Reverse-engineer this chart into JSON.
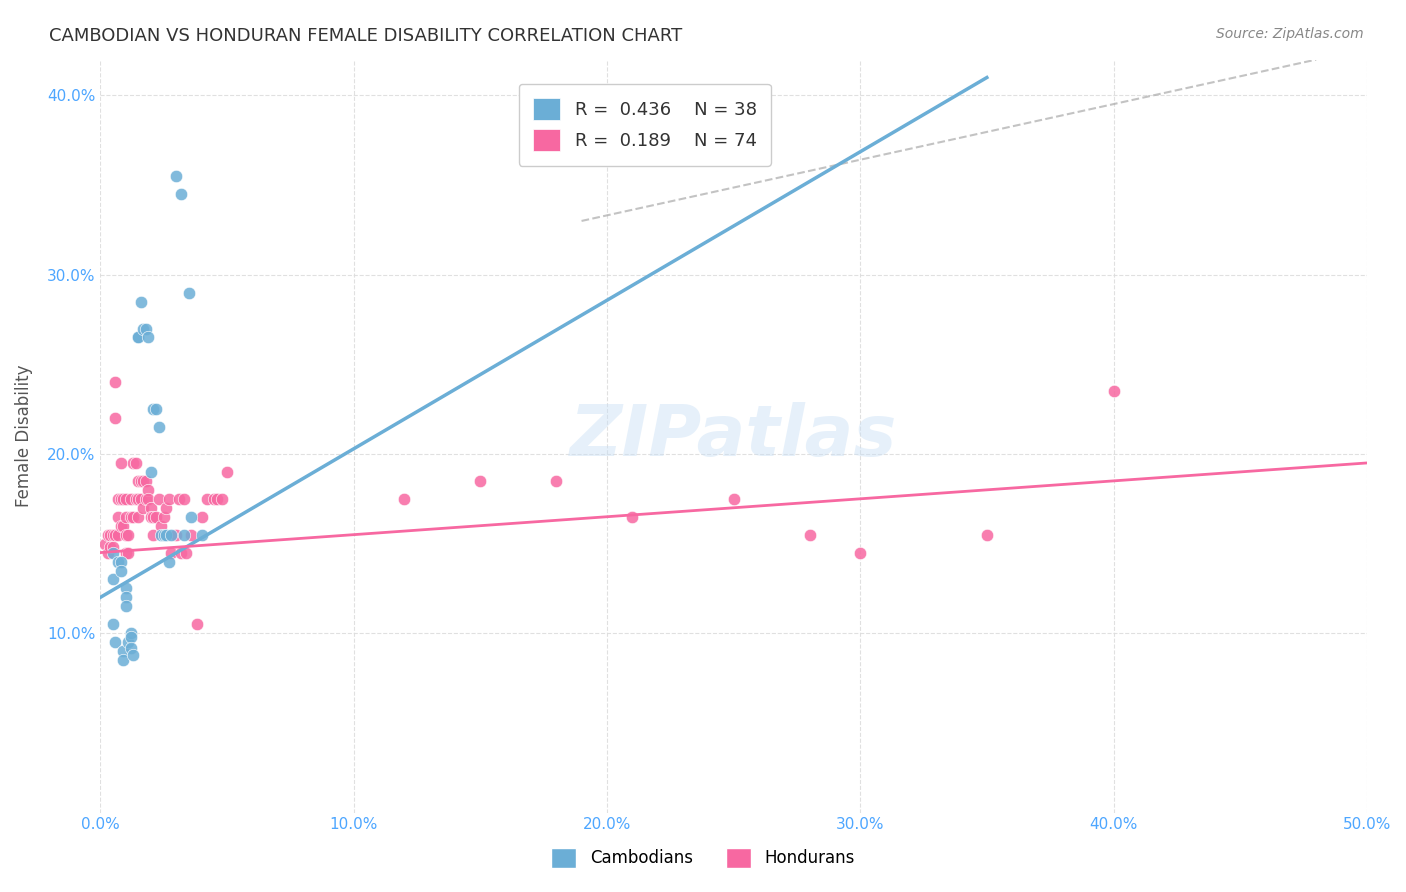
{
  "title": "CAMBODIAN VS HONDURAN FEMALE DISABILITY CORRELATION CHART",
  "source": "Source: ZipAtlas.com",
  "xlabel_bottom": "",
  "ylabel": "Female Disability",
  "xlim": [
    0.0,
    0.5
  ],
  "ylim": [
    0.0,
    0.42
  ],
  "xticks": [
    0.0,
    0.1,
    0.2,
    0.3,
    0.4,
    0.5
  ],
  "yticks": [
    0.1,
    0.2,
    0.3,
    0.4
  ],
  "xtick_labels": [
    "0.0%",
    "10.0%",
    "20.0%",
    "30.0%",
    "40.0%",
    "50.0%"
  ],
  "ytick_labels": [
    "10.0%",
    "20.0%",
    "30.0%",
    "40.0%"
  ],
  "legend_R1": "R = 0.436",
  "legend_N1": "N = 38",
  "legend_R2": "R = 0.189",
  "legend_N2": "N = 74",
  "cambodian_color": "#6baed6",
  "honduran_color": "#f768a1",
  "cambodian_scatter": {
    "x": [
      0.005,
      0.005,
      0.005,
      0.006,
      0.007,
      0.008,
      0.008,
      0.009,
      0.009,
      0.01,
      0.01,
      0.01,
      0.011,
      0.012,
      0.012,
      0.012,
      0.013,
      0.015,
      0.015,
      0.016,
      0.017,
      0.018,
      0.019,
      0.02,
      0.021,
      0.022,
      0.023,
      0.024,
      0.025,
      0.026,
      0.027,
      0.028,
      0.03,
      0.032,
      0.033,
      0.035,
      0.036,
      0.04
    ],
    "y": [
      0.145,
      0.13,
      0.105,
      0.095,
      0.14,
      0.14,
      0.135,
      0.09,
      0.085,
      0.125,
      0.12,
      0.115,
      0.095,
      0.1,
      0.098,
      0.092,
      0.088,
      0.265,
      0.265,
      0.285,
      0.27,
      0.27,
      0.265,
      0.19,
      0.225,
      0.225,
      0.215,
      0.155,
      0.155,
      0.155,
      0.14,
      0.155,
      0.355,
      0.345,
      0.155,
      0.29,
      0.165,
      0.155
    ]
  },
  "honduran_scatter": {
    "x": [
      0.002,
      0.003,
      0.003,
      0.004,
      0.004,
      0.005,
      0.005,
      0.006,
      0.006,
      0.006,
      0.007,
      0.007,
      0.007,
      0.008,
      0.008,
      0.008,
      0.009,
      0.009,
      0.01,
      0.01,
      0.01,
      0.01,
      0.011,
      0.011,
      0.012,
      0.012,
      0.013,
      0.013,
      0.014,
      0.014,
      0.015,
      0.015,
      0.015,
      0.016,
      0.016,
      0.017,
      0.017,
      0.018,
      0.018,
      0.019,
      0.019,
      0.02,
      0.02,
      0.021,
      0.021,
      0.022,
      0.023,
      0.024,
      0.025,
      0.026,
      0.027,
      0.028,
      0.03,
      0.031,
      0.032,
      0.033,
      0.034,
      0.036,
      0.038,
      0.04,
      0.042,
      0.045,
      0.046,
      0.048,
      0.05,
      0.12,
      0.15,
      0.18,
      0.21,
      0.25,
      0.28,
      0.3,
      0.35,
      0.4
    ],
    "y": [
      0.15,
      0.155,
      0.145,
      0.155,
      0.148,
      0.155,
      0.148,
      0.24,
      0.22,
      0.155,
      0.175,
      0.165,
      0.155,
      0.195,
      0.175,
      0.16,
      0.175,
      0.16,
      0.175,
      0.165,
      0.155,
      0.145,
      0.155,
      0.145,
      0.175,
      0.165,
      0.195,
      0.165,
      0.195,
      0.175,
      0.185,
      0.175,
      0.165,
      0.185,
      0.175,
      0.185,
      0.17,
      0.185,
      0.175,
      0.18,
      0.175,
      0.17,
      0.165,
      0.165,
      0.155,
      0.165,
      0.175,
      0.16,
      0.165,
      0.17,
      0.175,
      0.145,
      0.155,
      0.175,
      0.145,
      0.175,
      0.145,
      0.155,
      0.105,
      0.165,
      0.175,
      0.175,
      0.175,
      0.175,
      0.19,
      0.175,
      0.185,
      0.185,
      0.165,
      0.175,
      0.155,
      0.145,
      0.155,
      0.235
    ]
  },
  "cambodian_line": {
    "x0": 0.0,
    "y0": 0.12,
    "x1": 0.35,
    "y1": 0.41
  },
  "honduran_line": {
    "x0": 0.0,
    "y0": 0.145,
    "x1": 0.5,
    "y1": 0.195
  },
  "dashed_line": {
    "x0": 0.19,
    "y0": 0.33,
    "x1": 0.48,
    "y1": 0.42
  },
  "watermark": "ZIPatlas",
  "background_color": "#ffffff",
  "grid_color": "#dddddd",
  "title_color": "#333333",
  "axis_color": "#4da6ff",
  "legend_text_color_R": "#333333",
  "legend_text_color_N": "#0066ff"
}
